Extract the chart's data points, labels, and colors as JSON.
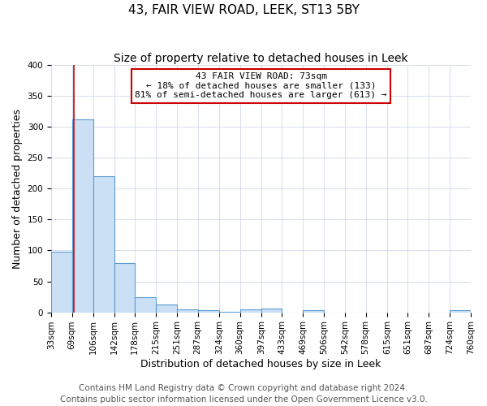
{
  "title": "43, FAIR VIEW ROAD, LEEK, ST13 5BY",
  "subtitle": "Size of property relative to detached houses in Leek",
  "xlabel": "Distribution of detached houses by size in Leek",
  "ylabel": "Number of detached properties",
  "bin_edges": [
    33,
    69,
    106,
    142,
    178,
    215,
    251,
    287,
    324,
    360,
    397,
    433,
    469,
    506,
    542,
    578,
    615,
    651,
    687,
    724,
    760
  ],
  "bar_heights": [
    98,
    312,
    220,
    80,
    25,
    13,
    5,
    3,
    1,
    5,
    6,
    0,
    3,
    0,
    0,
    0,
    0,
    0,
    0,
    3
  ],
  "bar_color": "#cce0f5",
  "bar_edge_color": "#5b9bd5",
  "vline_x": 73,
  "vline_color": "#cc0000",
  "annotation_text": "43 FAIR VIEW ROAD: 73sqm\n← 18% of detached houses are smaller (133)\n81% of semi-detached houses are larger (613) →",
  "annotation_box_color": "#cc0000",
  "ylim": [
    0,
    400
  ],
  "yticks": [
    0,
    50,
    100,
    150,
    200,
    250,
    300,
    350,
    400
  ],
  "tick_labels": [
    "33sqm",
    "69sqm",
    "106sqm",
    "142sqm",
    "178sqm",
    "215sqm",
    "251sqm",
    "287sqm",
    "324sqm",
    "360sqm",
    "397sqm",
    "433sqm",
    "469sqm",
    "506sqm",
    "542sqm",
    "578sqm",
    "615sqm",
    "651sqm",
    "687sqm",
    "724sqm",
    "760sqm"
  ],
  "footer_line1": "Contains HM Land Registry data © Crown copyright and database right 2024.",
  "footer_line2": "Contains public sector information licensed under the Open Government Licence v3.0.",
  "grid_color": "#d0d8e8",
  "title_fontsize": 11,
  "subtitle_fontsize": 10,
  "label_fontsize": 9,
  "tick_fontsize": 7.5,
  "annot_fontsize": 8,
  "footer_fontsize": 7.5
}
